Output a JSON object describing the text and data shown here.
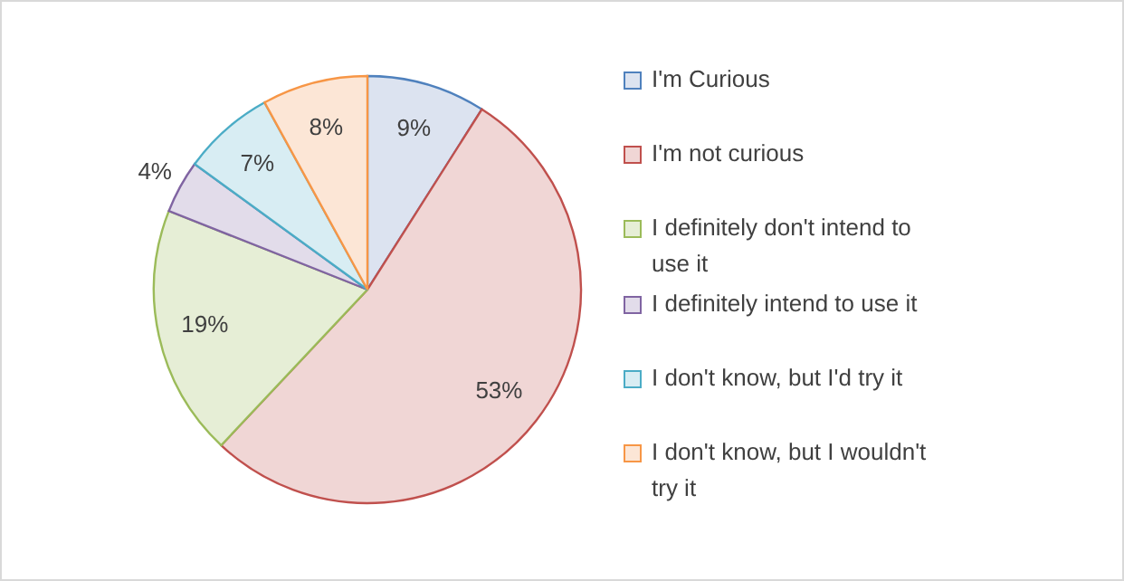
{
  "chart_data": {
    "type": "pie",
    "categories": [
      "I'm Curious",
      "I'm not curious",
      "I definitely don't intend to use it",
      "I definitely intend to use it",
      "I don't know, but I'd try it",
      "I don't know, but I wouldn't try it"
    ],
    "values": [
      9,
      53,
      19,
      4,
      7,
      8
    ],
    "colors": [
      "#dce3f0",
      "#f0d6d5",
      "#e6eed6",
      "#e2dcea",
      "#d8edf3",
      "#fce6d6"
    ],
    "value_labels": [
      "9%",
      "53%",
      "19%",
      "4%",
      "7%",
      "8%"
    ],
    "legend": "right"
  }
}
